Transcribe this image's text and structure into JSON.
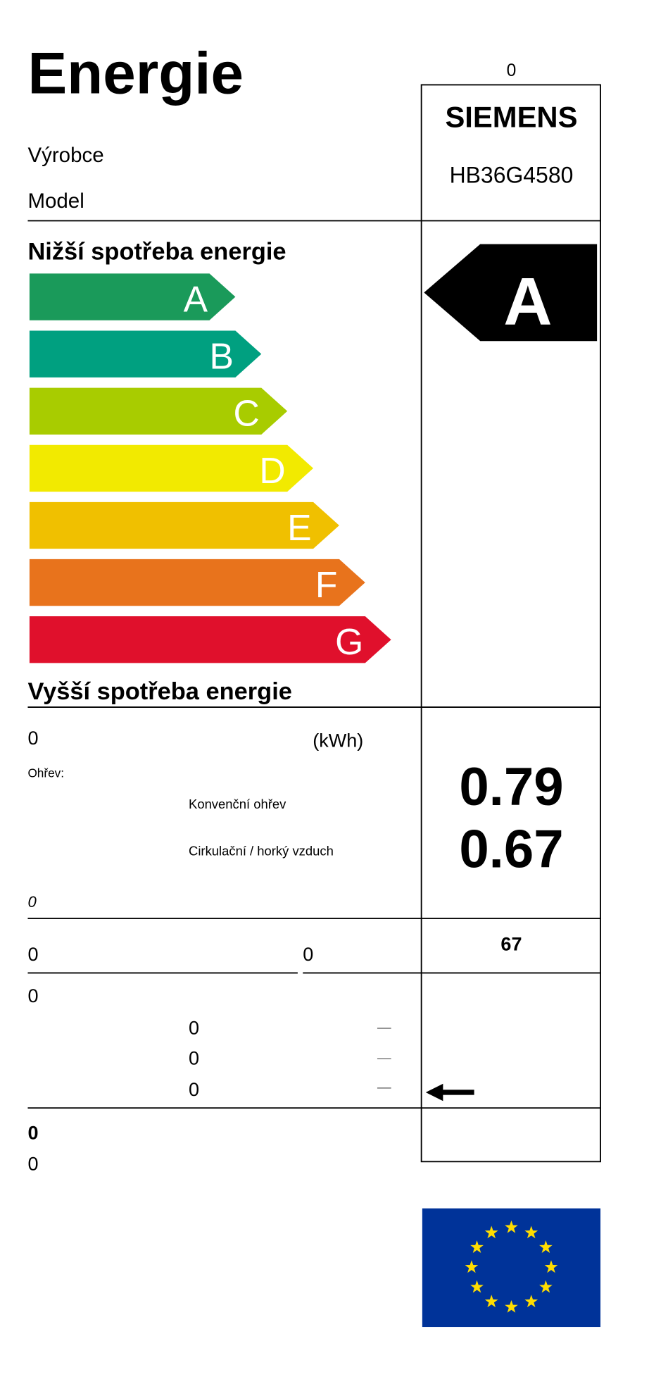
{
  "header": {
    "title": "Energie",
    "top_value": "0",
    "manufacturer_label": "Výrobce",
    "model_label": "Model",
    "brand": "SIEMENS",
    "model": "HB36G4580"
  },
  "scale": {
    "top_label": "Nižší spotřeba energie",
    "bottom_label": "Vyšší spotřeba energie",
    "classes": [
      {
        "letter": "A",
        "color": "#1a9a5a"
      },
      {
        "letter": "B",
        "color": "#00a080"
      },
      {
        "letter": "C",
        "color": "#a8cc00"
      },
      {
        "letter": "D",
        "color": "#f2ea00"
      },
      {
        "letter": "E",
        "color": "#f0c000"
      },
      {
        "letter": "F",
        "color": "#e8731c"
      },
      {
        "letter": "G",
        "color": "#e0102c"
      }
    ],
    "rating": "A"
  },
  "consumption": {
    "label": "0",
    "unit": "(kWh)",
    "heating_label": "Ohřev:",
    "conventional_label": "Konvenční ohřev",
    "convection_label": "Cirkulační / horký vzduch",
    "conventional_value": "0.79",
    "convection_value": "0.67",
    "note": "0"
  },
  "volume": {
    "label": "0",
    "label2": "0",
    "value": "67"
  },
  "size": {
    "label": "0",
    "rows": [
      "0",
      "0",
      "0"
    ]
  },
  "footer": {
    "line1": "0",
    "line2": "0"
  }
}
